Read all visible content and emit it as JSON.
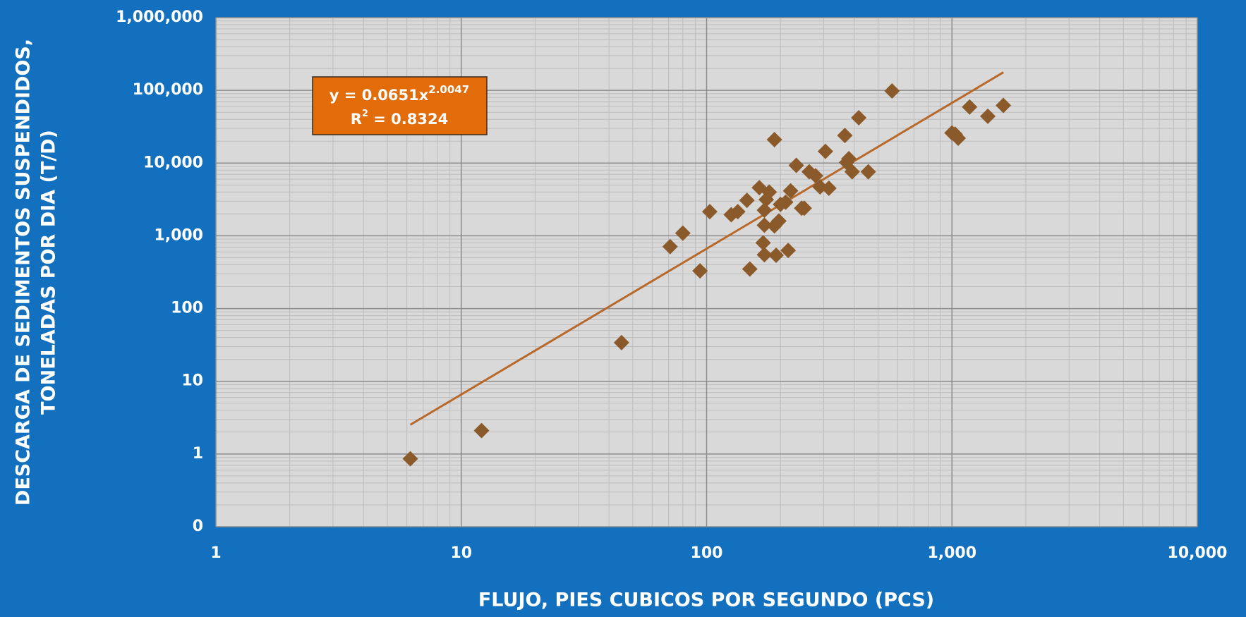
{
  "chart_data": {
    "type": "scatter",
    "x_label": "FLUJO, PIES CUBICOS POR SEGUNDO (PCS)",
    "y_label": [
      "DESCARGA DE SEDIMENTOS SUSPENDIDOS,",
      "TONELADAS POR DIA (T/D)"
    ],
    "x": [
      6.2,
      12.1,
      45,
      71,
      80,
      94,
      103,
      126,
      134,
      146,
      150,
      164,
      170,
      172,
      172,
      172,
      175,
      180,
      189,
      189,
      192,
      197,
      200,
      210,
      215,
      220,
      232,
      244,
      250,
      262,
      278,
      290,
      305,
      315,
      366,
      372,
      380,
      392,
      417,
      456,
      570,
      1000,
      1030,
      1060,
      1180,
      1400,
      1620
    ],
    "values": [
      0.86,
      2.1,
      34,
      710,
      1090,
      330,
      2150,
      1950,
      2150,
      3070,
      350,
      4600,
      800,
      550,
      1400,
      2250,
      3150,
      4000,
      21000,
      1370,
      540,
      1600,
      2700,
      2900,
      630,
      4150,
      9300,
      2400,
      2400,
      7600,
      6700,
      4700,
      14500,
      4500,
      24000,
      10200,
      11500,
      7600,
      42000,
      7600,
      98000,
      26000,
      25000,
      22000,
      59000,
      44000,
      62000
    ],
    "color": "#8b5a2b",
    "trendline": {
      "coefficient": 0.0651,
      "exponent": 2.0047,
      "x_range": [
        6.2,
        1620
      ],
      "color": "#b8692a"
    },
    "annotation": {
      "equation": "y = 0.0651x",
      "equation_exponent": "2.0047",
      "r2": "R",
      "r2_exponent": "2",
      "r2_value": " = 0.8324"
    },
    "xlim": [
      1,
      10000
    ],
    "xticks": [
      1,
      10,
      100,
      {
        "value": 1000,
        "label": "1,000"
      },
      {
        "value": 10000,
        "label": "10,000"
      }
    ],
    "ylim": [
      0.1,
      1000000
    ],
    "yticks": [
      {
        "value": 0.1,
        "label": "0"
      },
      1,
      10,
      100,
      {
        "value": 1000,
        "label": "1,000"
      },
      {
        "value": 10000,
        "label": "10,000"
      },
      {
        "value": 100000,
        "label": "100,000"
      },
      {
        "value": 1000000,
        "label": "1,000,000"
      }
    ],
    "x_log": true,
    "y_log": true,
    "grid": true,
    "minor_grid": true
  }
}
